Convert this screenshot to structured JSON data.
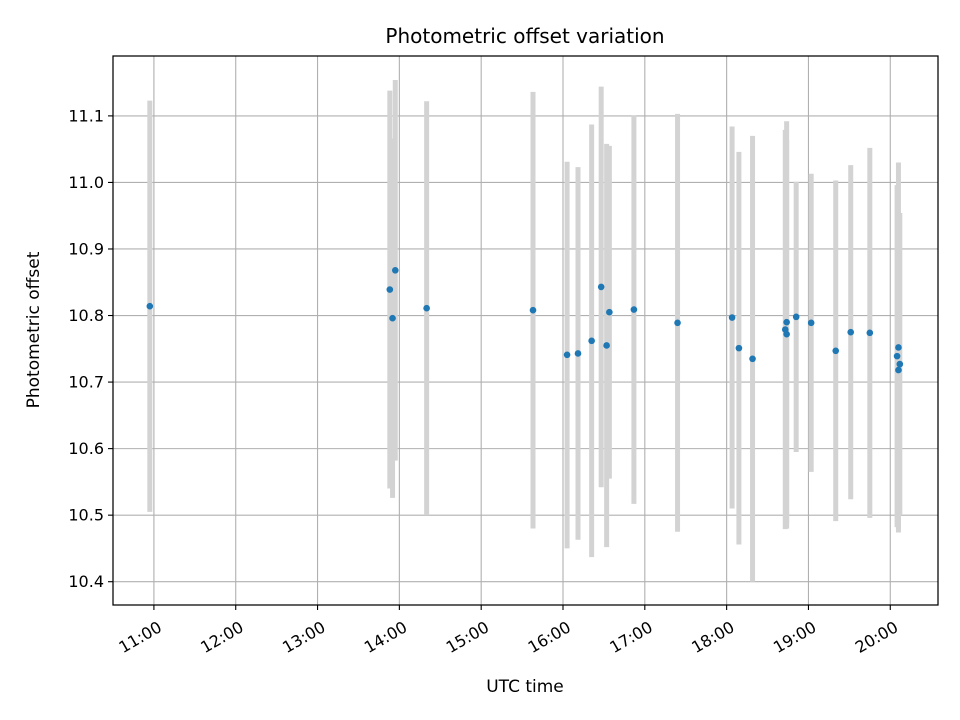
{
  "chart_data": {
    "type": "scatter",
    "title": "Photometric offset variation",
    "xlabel": "UTC time",
    "ylabel": "Photometric offset",
    "x_unit": "hours UTC",
    "xlim": [
      "10:30",
      "20:35"
    ],
    "ylim": [
      10.365,
      11.19
    ],
    "xticks": [
      "11:00",
      "12:00",
      "13:00",
      "14:00",
      "15:00",
      "16:00",
      "17:00",
      "18:00",
      "19:00",
      "20:00"
    ],
    "yticks": [
      "10.4",
      "10.5",
      "10.6",
      "10.7",
      "10.8",
      "10.9",
      "11.0",
      "11.1"
    ],
    "grid": true,
    "colors": {
      "point": "#1f77b4",
      "errorbar": "#d3d3d3",
      "grid": "#b0b0b0"
    },
    "points": [
      {
        "x": "10:57",
        "y": 10.814,
        "ylow": 10.505,
        "yhigh": 11.123
      },
      {
        "x": "13:53",
        "y": 10.839,
        "ylow": 10.54,
        "yhigh": 11.138
      },
      {
        "x": "13:55",
        "y": 10.796,
        "ylow": 10.526,
        "yhigh": 11.066
      },
      {
        "x": "13:57",
        "y": 10.868,
        "ylow": 10.582,
        "yhigh": 11.154
      },
      {
        "x": "14:20",
        "y": 10.811,
        "ylow": 10.5,
        "yhigh": 11.122
      },
      {
        "x": "15:38",
        "y": 10.808,
        "ylow": 10.48,
        "yhigh": 11.136
      },
      {
        "x": "16:03",
        "y": 10.741,
        "ylow": 10.45,
        "yhigh": 11.031
      },
      {
        "x": "16:11",
        "y": 10.743,
        "ylow": 10.463,
        "yhigh": 11.023
      },
      {
        "x": "16:21",
        "y": 10.762,
        "ylow": 10.437,
        "yhigh": 11.087
      },
      {
        "x": "16:28",
        "y": 10.843,
        "ylow": 10.542,
        "yhigh": 11.144
      },
      {
        "x": "16:32",
        "y": 10.755,
        "ylow": 10.452,
        "yhigh": 11.058
      },
      {
        "x": "16:34",
        "y": 10.805,
        "ylow": 10.555,
        "yhigh": 11.055
      },
      {
        "x": "16:52",
        "y": 10.809,
        "ylow": 10.517,
        "yhigh": 11.101
      },
      {
        "x": "17:24",
        "y": 10.789,
        "ylow": 10.475,
        "yhigh": 11.103
      },
      {
        "x": "18:04",
        "y": 10.797,
        "ylow": 10.51,
        "yhigh": 11.084
      },
      {
        "x": "18:09",
        "y": 10.751,
        "ylow": 10.456,
        "yhigh": 11.046
      },
      {
        "x": "18:19",
        "y": 10.735,
        "ylow": 10.4,
        "yhigh": 11.07
      },
      {
        "x": "18:43",
        "y": 10.779,
        "ylow": 10.479,
        "yhigh": 11.079
      },
      {
        "x": "18:44",
        "y": 10.772,
        "ylow": 10.48,
        "yhigh": 11.064
      },
      {
        "x": "18:44",
        "y": 10.79,
        "ylow": 10.488,
        "yhigh": 11.092
      },
      {
        "x": "18:51",
        "y": 10.798,
        "ylow": 10.595,
        "yhigh": 11.001
      },
      {
        "x": "19:02",
        "y": 10.789,
        "ylow": 10.565,
        "yhigh": 11.013
      },
      {
        "x": "19:20",
        "y": 10.747,
        "ylow": 10.491,
        "yhigh": 11.003
      },
      {
        "x": "19:31",
        "y": 10.775,
        "ylow": 10.524,
        "yhigh": 11.026
      },
      {
        "x": "19:45",
        "y": 10.774,
        "ylow": 10.496,
        "yhigh": 11.052
      },
      {
        "x": "20:05",
        "y": 10.739,
        "ylow": 10.482,
        "yhigh": 10.996
      },
      {
        "x": "20:06",
        "y": 10.752,
        "ylow": 10.474,
        "yhigh": 11.03
      },
      {
        "x": "20:06",
        "y": 10.718,
        "ylow": 10.48,
        "yhigh": 10.956
      },
      {
        "x": "20:07",
        "y": 10.727,
        "ylow": 10.5,
        "yhigh": 10.954
      }
    ]
  }
}
